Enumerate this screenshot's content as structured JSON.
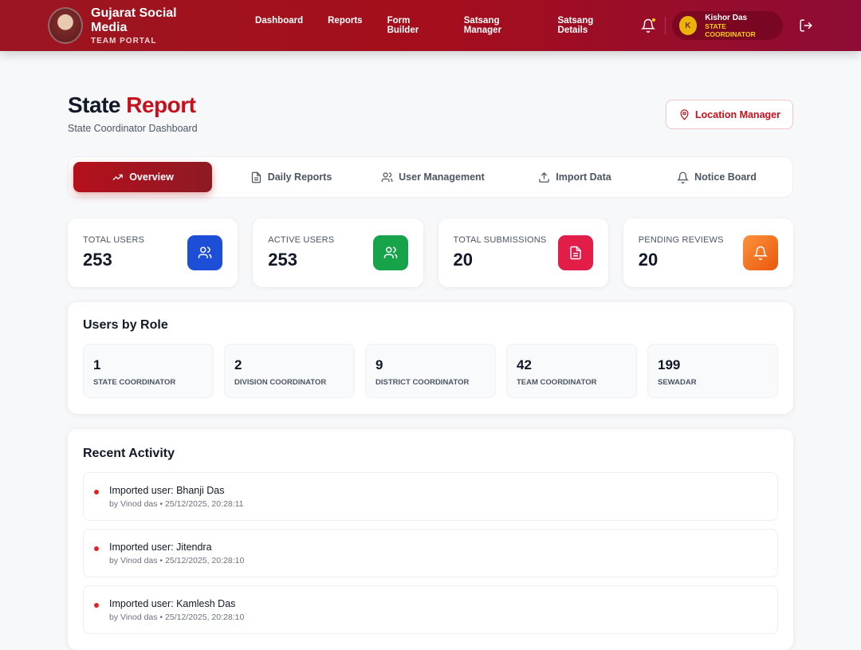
{
  "nav": {
    "title": "Gujarat Social Media",
    "subtitle": "TEAM PORTAL",
    "links": [
      "Dashboard",
      "Reports",
      "Form Builder",
      "Satsang Manager",
      "Satsang Details"
    ],
    "user": {
      "initial": "K",
      "name": "Kishor Das",
      "role": "STATE COORDINATOR"
    }
  },
  "page": {
    "title_a": "State",
    "title_b": "Report",
    "subtitle": "State Coordinator Dashboard",
    "location_button": "Location Manager"
  },
  "tabs": [
    {
      "label": "Overview",
      "icon": "trending-up-icon"
    },
    {
      "label": "Daily Reports",
      "icon": "file-icon"
    },
    {
      "label": "User Management",
      "icon": "users-icon"
    },
    {
      "label": "Import Data",
      "icon": "upload-icon"
    },
    {
      "label": "Notice Board",
      "icon": "bell-icon"
    }
  ],
  "stats": [
    {
      "label": "TOTAL USERS",
      "value": "253",
      "color": "#1d4ed8"
    },
    {
      "label": "ACTIVE USERS",
      "value": "253",
      "color": "#16a34a"
    },
    {
      "label": "TOTAL SUBMISSIONS",
      "value": "20",
      "color": "#e11d48"
    },
    {
      "label": "PENDING REVIEWS",
      "value": "20",
      "color": "#f97316"
    }
  ],
  "roles": {
    "title": "Users by Role",
    "items": [
      {
        "value": "1",
        "label": "STATE COORDINATOR"
      },
      {
        "value": "2",
        "label": "DIVISION COORDINATOR"
      },
      {
        "value": "9",
        "label": "DISTRICT COORDINATOR"
      },
      {
        "value": "42",
        "label": "TEAM COORDINATOR"
      },
      {
        "value": "199",
        "label": "SEWADAR"
      }
    ]
  },
  "activity": {
    "title": "Recent Activity",
    "items": [
      {
        "text": "Imported user: Bhanji Das",
        "meta": "by Vinod das • 25/12/2025, 20:28:11"
      },
      {
        "text": "Imported user: Jitendra",
        "meta": "by Vinod das • 25/12/2025, 20:28:10"
      },
      {
        "text": "Imported user: Kamlesh Das",
        "meta": "by Vinod das • 25/12/2025, 20:28:10"
      }
    ]
  }
}
